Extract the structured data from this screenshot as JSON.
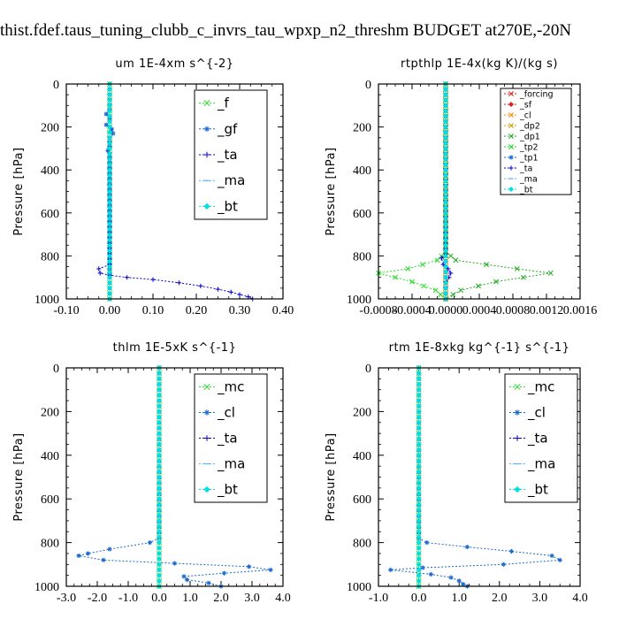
{
  "figure_title": "thist.fdef.taus_tuning_clubb_c_invrs_tau_wpxp_n2_threshm  BUDGET at270E,-20N",
  "chart_data": [
    {
      "type": "line",
      "title": "um   1E-4xm s^{-2}",
      "ylabel": "Pressure [hPa]",
      "xlim": [
        -0.1,
        0.4
      ],
      "ylim": [
        1000,
        0
      ],
      "xticks": [
        "-0.10",
        "0.00",
        "0.10",
        "0.20",
        "0.30",
        "0.40"
      ],
      "yticks": [
        "0",
        "200",
        "400",
        "600",
        "800",
        "1000"
      ],
      "legend_size": "large",
      "series": [
        {
          "name": "_f",
          "color": "#22dd22",
          "marker": "x",
          "points": [
            [
              0.0,
              0
            ],
            [
              0.0,
              1000
            ]
          ]
        },
        {
          "name": "_gf",
          "color": "#1a6ad0",
          "marker": "*",
          "points": [
            [
              0.0,
              0
            ],
            [
              0.0,
              120
            ],
            [
              -0.008,
              140
            ],
            [
              0.0,
              160
            ],
            [
              -0.008,
              190
            ],
            [
              0.005,
              210
            ],
            [
              0.008,
              230
            ],
            [
              0.0,
              250
            ],
            [
              0.0,
              290
            ],
            [
              -0.004,
              310
            ],
            [
              0.0,
              340
            ],
            [
              0.0,
              860
            ],
            [
              0.0,
              880
            ],
            [
              0.0,
              900
            ],
            [
              0.0,
              1000
            ]
          ]
        },
        {
          "name": "_ta",
          "color": "#0000cc",
          "marker": "+",
          "points": [
            [
              0.0,
              0
            ],
            [
              0.0,
              840
            ],
            [
              -0.025,
              860
            ],
            [
              -0.022,
              880
            ],
            [
              0.0,
              890
            ],
            [
              0.04,
              900
            ],
            [
              0.1,
              910
            ],
            [
              0.16,
              925
            ],
            [
              0.21,
              940
            ],
            [
              0.25,
              955
            ],
            [
              0.28,
              968
            ],
            [
              0.3,
              980
            ],
            [
              0.32,
              990
            ],
            [
              0.33,
              1000
            ]
          ]
        },
        {
          "name": "_ma",
          "color": "#5fb0ff",
          "marker": "-",
          "points": [
            [
              0.0,
              0
            ],
            [
              0.0,
              1000
            ]
          ]
        },
        {
          "name": "_bt",
          "color": "#00e0e0",
          "marker": "d",
          "points": [
            [
              0.0,
              0
            ],
            [
              0.0,
              1000
            ]
          ]
        }
      ]
    },
    {
      "type": "line",
      "title": "rtpthlp   1E-4x(kg K)/(kg s)",
      "ylabel": "Pressure [hPa]",
      "xlim": [
        -0.0008,
        0.0016
      ],
      "ylim": [
        1000,
        0
      ],
      "xticks": [
        "-0.0008",
        "-0.0004",
        "0.0000",
        "0.0004",
        "0.0008",
        "0.0012",
        "0.0016"
      ],
      "yticks": [
        "0",
        "200",
        "400",
        "600",
        "800",
        "1000"
      ],
      "legend_size": "small",
      "series": [
        {
          "name": "_forcing",
          "color": "#e02020",
          "marker": "x",
          "points": [
            [
              0.0,
              0
            ],
            [
              0.0,
              1000
            ]
          ]
        },
        {
          "name": "_sf",
          "color": "#e02020",
          "marker": "d",
          "points": [
            [
              0.0,
              0
            ],
            [
              0.0,
              1000
            ]
          ]
        },
        {
          "name": "_cl",
          "color": "#ff8800",
          "marker": "x",
          "points": [
            [
              0.0,
              0
            ],
            [
              0.0,
              1000
            ]
          ]
        },
        {
          "name": "_dp2",
          "color": "#c8a000",
          "marker": "x",
          "points": [
            [
              0.0,
              0
            ],
            [
              0.0,
              1000
            ]
          ]
        },
        {
          "name": "_dp1",
          "color": "#22aa22",
          "marker": "x",
          "points": [
            [
              0.0,
              0
            ],
            [
              0.0,
              780
            ],
            [
              0.00012,
              820
            ],
            [
              0.00085,
              860
            ],
            [
              0.00125,
              880
            ],
            [
              0.0006,
              920
            ],
            [
              0.00018,
              960
            ],
            [
              0.0,
              1000
            ]
          ]
        },
        {
          "name": "_tp2",
          "color": "#22dd22",
          "marker": "x",
          "points": [
            [
              0.0,
              0
            ],
            [
              0.0,
              780
            ],
            [
              -0.0001,
              820
            ],
            [
              -0.00045,
              860
            ],
            [
              -0.0008,
              880
            ],
            [
              -0.0004,
              920
            ],
            [
              -0.00012,
              960
            ],
            [
              0.0,
              1000
            ]
          ]
        },
        {
          "name": "_tp1",
          "color": "#1a6ad0",
          "marker": "*",
          "points": [
            [
              0.0,
              0
            ],
            [
              0.0,
              1000
            ]
          ]
        },
        {
          "name": "_ta",
          "color": "#0000cc",
          "marker": "+",
          "points": [
            [
              0.0,
              0
            ],
            [
              0.0,
              790
            ],
            [
              -5e-05,
              810
            ],
            [
              -3e-05,
              840
            ],
            [
              3e-05,
              860
            ],
            [
              6e-05,
              880
            ],
            [
              4e-05,
              900
            ],
            [
              0.0,
              920
            ],
            [
              0.0,
              1000
            ]
          ]
        },
        {
          "name": "_ma",
          "color": "#5fb0ff",
          "marker": "-",
          "points": [
            [
              0.0,
              0
            ],
            [
              0.0,
              1000
            ]
          ]
        },
        {
          "name": "_bt",
          "color": "#00e0e0",
          "marker": "d",
          "points": [
            [
              0.0,
              0
            ],
            [
              0.0,
              1000
            ]
          ]
        }
      ]
    },
    {
      "type": "line",
      "title": "thlm   1E-5xK s^{-1}",
      "ylabel": "Pressure [hPa]",
      "xlim": [
        -3.0,
        4.0
      ],
      "ylim": [
        1000,
        0
      ],
      "xticks": [
        "-3.0",
        "-2.0",
        "-1.0",
        "0.0",
        "1.0",
        "2.0",
        "3.0",
        "4.0"
      ],
      "yticks": [
        "0",
        "200",
        "400",
        "600",
        "800",
        "1000"
      ],
      "legend_size": "large",
      "series": [
        {
          "name": "_mc",
          "color": "#22dd22",
          "marker": "x",
          "points": [
            [
              0.0,
              0
            ],
            [
              0.0,
              1000
            ]
          ]
        },
        {
          "name": "_cl",
          "color": "#1a6ad0",
          "marker": "*",
          "points": [
            [
              0.0,
              0
            ],
            [
              0.0,
              780
            ],
            [
              -0.3,
              800
            ],
            [
              -1.6,
              830
            ],
            [
              -2.3,
              850
            ],
            [
              -2.6,
              860
            ],
            [
              -1.8,
              880
            ],
            [
              0.5,
              895
            ],
            [
              2.9,
              910
            ],
            [
              3.6,
              925
            ],
            [
              2.1,
              940
            ],
            [
              0.8,
              955
            ],
            [
              0.9,
              970
            ],
            [
              1.6,
              985
            ],
            [
              2.0,
              1000
            ]
          ]
        },
        {
          "name": "_ta",
          "color": "#0000cc",
          "marker": "+",
          "points": [
            [
              0.0,
              0
            ],
            [
              0.0,
              1000
            ]
          ]
        },
        {
          "name": "_ma",
          "color": "#5fb0ff",
          "marker": "-",
          "points": [
            [
              0.0,
              0
            ],
            [
              0.0,
              1000
            ]
          ]
        },
        {
          "name": "_bt",
          "color": "#00e0e0",
          "marker": "d",
          "points": [
            [
              0.0,
              0
            ],
            [
              0.0,
              1000
            ]
          ]
        }
      ]
    },
    {
      "type": "line",
      "title": "rtm   1E-8xkg kg^{-1} s^{-1}",
      "ylabel": "Pressure [hPa]",
      "xlim": [
        -1.0,
        4.0
      ],
      "ylim": [
        1000,
        0
      ],
      "xticks": [
        "-1.0",
        "0.0",
        "1.0",
        "2.0",
        "3.0",
        "4.0"
      ],
      "yticks": [
        "0",
        "200",
        "400",
        "600",
        "800",
        "1000"
      ],
      "legend_size": "large",
      "series": [
        {
          "name": "_mc",
          "color": "#22dd22",
          "marker": "x",
          "points": [
            [
              0.0,
              0
            ],
            [
              0.0,
              1000
            ]
          ]
        },
        {
          "name": "_cl",
          "color": "#1a6ad0",
          "marker": "*",
          "points": [
            [
              0.0,
              0
            ],
            [
              0.0,
              780
            ],
            [
              0.2,
              800
            ],
            [
              1.2,
              820
            ],
            [
              2.3,
              840
            ],
            [
              3.3,
              860
            ],
            [
              3.5,
              880
            ],
            [
              2.1,
              900
            ],
            [
              0.1,
              915
            ],
            [
              -0.7,
              925
            ],
            [
              0.3,
              945
            ],
            [
              0.8,
              960
            ],
            [
              1.0,
              975
            ],
            [
              1.1,
              990
            ],
            [
              1.2,
              1000
            ]
          ]
        },
        {
          "name": "_ta",
          "color": "#0000cc",
          "marker": "+",
          "points": [
            [
              0.0,
              0
            ],
            [
              0.0,
              1000
            ]
          ]
        },
        {
          "name": "_ma",
          "color": "#5fb0ff",
          "marker": "-",
          "points": [
            [
              0.0,
              0
            ],
            [
              0.0,
              1000
            ]
          ]
        },
        {
          "name": "_bt",
          "color": "#00e0e0",
          "marker": "d",
          "points": [
            [
              0.0,
              0
            ],
            [
              0.0,
              1000
            ]
          ]
        }
      ]
    }
  ]
}
